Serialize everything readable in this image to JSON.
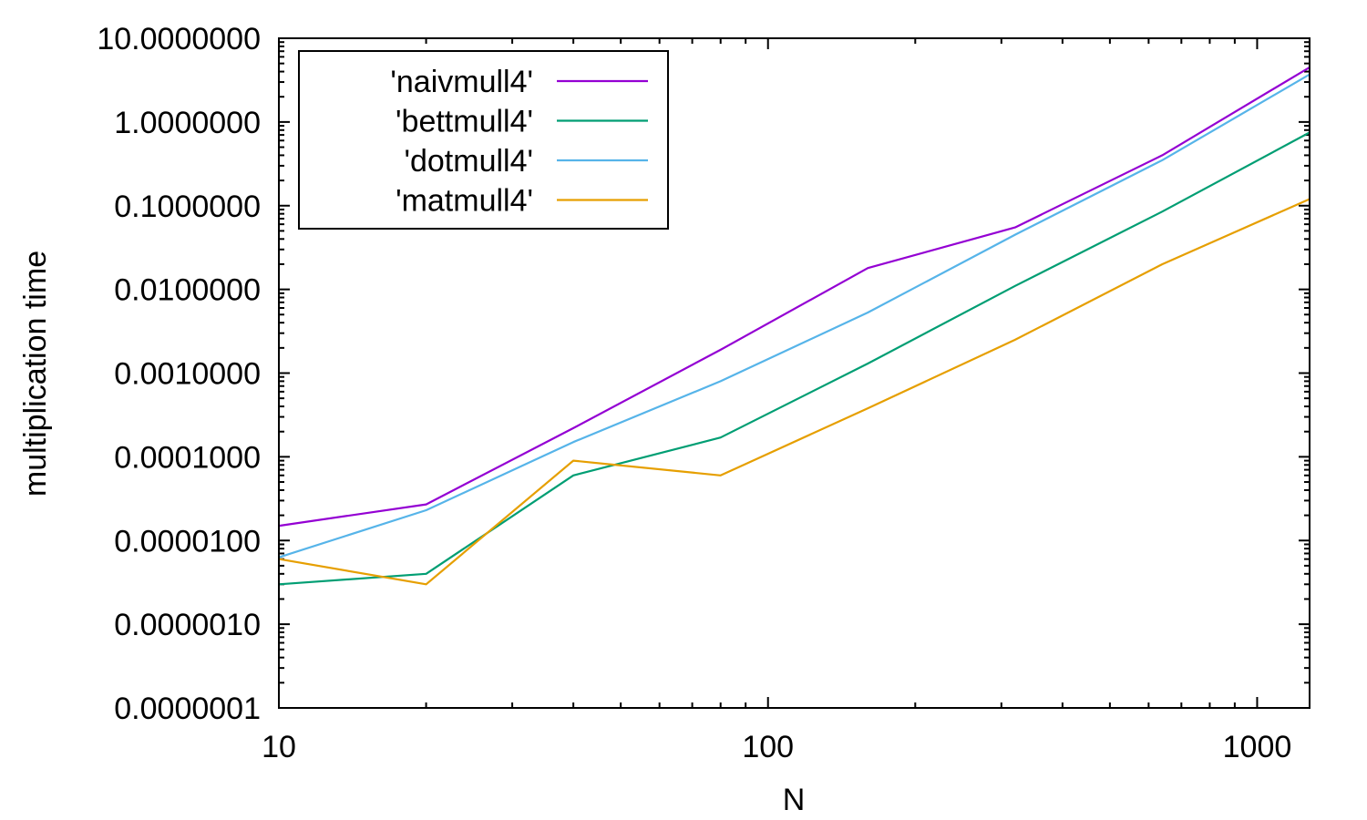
{
  "chart_data": {
    "type": "line",
    "xlabel": "N",
    "ylabel": "multiplication time",
    "x_scale": "log",
    "y_scale": "log",
    "xlim": [
      10,
      1280
    ],
    "ylim": [
      1e-07,
      10
    ],
    "x_ticks": [
      {
        "value": 10,
        "label": "10"
      },
      {
        "value": 100,
        "label": "100"
      },
      {
        "value": 1000,
        "label": "1000"
      }
    ],
    "y_ticks": [
      {
        "value": 10,
        "label": "10.0000000"
      },
      {
        "value": 1,
        "label": "1.0000000"
      },
      {
        "value": 0.1,
        "label": "0.1000000"
      },
      {
        "value": 0.01,
        "label": "0.0100000"
      },
      {
        "value": 0.001,
        "label": "0.0010000"
      },
      {
        "value": 0.0001,
        "label": "0.0001000"
      },
      {
        "value": 1e-05,
        "label": "0.0000100"
      },
      {
        "value": 1e-06,
        "label": "0.0000010"
      },
      {
        "value": 1e-07,
        "label": "0.0000001"
      }
    ],
    "grid": false,
    "legend_position": "top-left",
    "series": [
      {
        "name": "'naivmull4'",
        "color": "#9400d3",
        "x": [
          10,
          20,
          40,
          80,
          160,
          320,
          640,
          1280
        ],
        "y": [
          1.5e-05,
          2.7e-05,
          0.00022,
          0.0019,
          0.018,
          0.055,
          0.4,
          4.5
        ]
      },
      {
        "name": "'bettmull4'",
        "color": "#009e73",
        "x": [
          10,
          20,
          40,
          80,
          160,
          320,
          640,
          1280
        ],
        "y": [
          3e-06,
          4e-06,
          6e-05,
          0.00017,
          0.0013,
          0.011,
          0.085,
          0.75
        ]
      },
      {
        "name": "'dotmull4'",
        "color": "#56b4e9",
        "x": [
          10,
          20,
          40,
          80,
          160,
          320,
          640,
          1280
        ],
        "y": [
          6.3e-06,
          2.3e-05,
          0.00015,
          0.0008,
          0.0053,
          0.045,
          0.35,
          3.7
        ]
      },
      {
        "name": "'matmull4'",
        "color": "#e69f00",
        "x": [
          10,
          20,
          40,
          80,
          160,
          320,
          640,
          1280
        ],
        "y": [
          6e-06,
          3e-06,
          9e-05,
          6e-05,
          0.00038,
          0.0025,
          0.02,
          0.12
        ]
      }
    ]
  }
}
